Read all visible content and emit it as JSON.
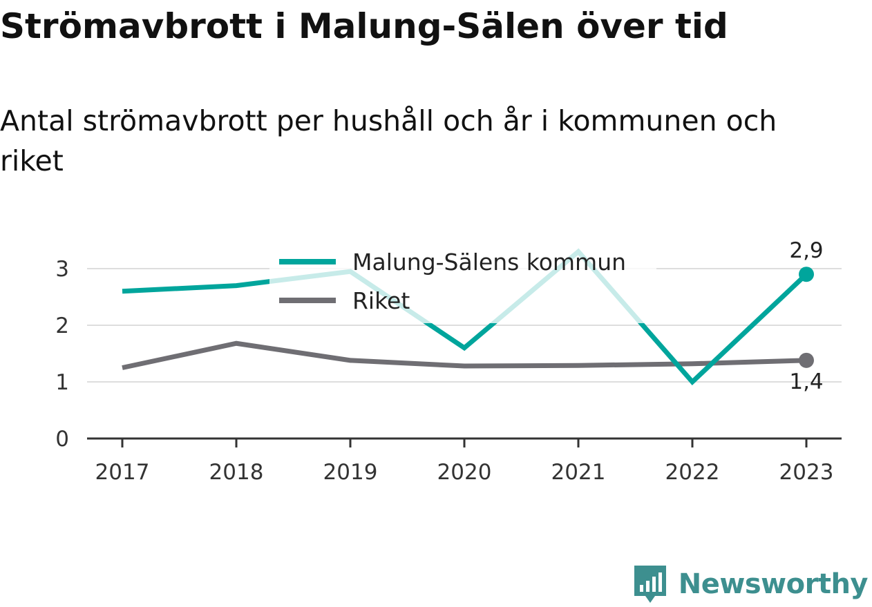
{
  "title": "Strömavbrott i Malung-Sälen över tid",
  "subtitle": "Antal strömavbrott per hushåll och år i kommunen och riket",
  "brand": {
    "name": "Newsworthy",
    "logo_icon": "newsworthy-logo-icon",
    "color": "#3d8f8f"
  },
  "chart_data": {
    "type": "line",
    "title": "Strömavbrott i Malung-Sälen över tid",
    "subtitle": "Antal strömavbrott per hushåll och år i kommunen och riket",
    "xlabel": "",
    "ylabel": "",
    "x": [
      "2017",
      "2018",
      "2019",
      "2020",
      "2021",
      "2022",
      "2023"
    ],
    "ylim": [
      0,
      3.6
    ],
    "yticks": [
      0,
      1,
      2,
      3
    ],
    "grid": true,
    "legend_position": "top-center",
    "series": [
      {
        "name": "Malung-Sälens kommun",
        "color": "#00a59c",
        "values": [
          2.6,
          2.7,
          2.95,
          1.6,
          3.3,
          1.0,
          2.9
        ],
        "end_label": "2,9"
      },
      {
        "name": "Riket",
        "color": "#6f6e73",
        "values": [
          1.25,
          1.68,
          1.38,
          1.28,
          1.29,
          1.32,
          1.38
        ],
        "end_label": "1,4"
      }
    ]
  }
}
